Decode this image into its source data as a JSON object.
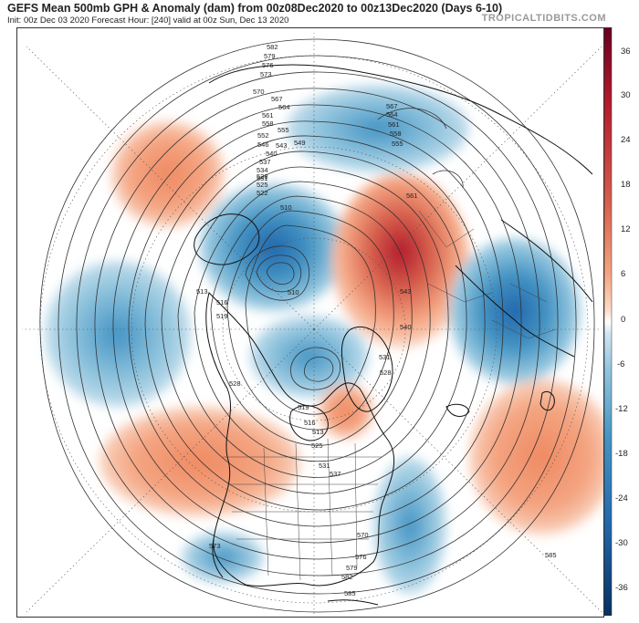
{
  "header": {
    "title": "GEFS Mean 500mb GPH & Anomaly (dam) from 00z08Dec2020 to 00z13Dec2020 (Days 6-10)",
    "subtitle": "Init: 00z Dec 03 2020   Forecast Hour: [240]   valid at 00z Sun, Dec 13 2020",
    "brand": "TROPICALTIDBITS.COM"
  },
  "colorbar": {
    "ticks": [
      "36",
      "30",
      "24",
      "18",
      "12",
      "6",
      "0",
      "-6",
      "-12",
      "-18",
      "-24",
      "-30",
      "-36"
    ],
    "colors": {
      "top": "#a50f15",
      "mid_pos": "#f4a582",
      "zero": "#ffffff",
      "mid_neg": "#92c5de",
      "bottom": "#08306b"
    }
  },
  "contour_labels": [
    {
      "id": "c582a",
      "text": "582"
    },
    {
      "id": "c579",
      "text": "579"
    },
    {
      "id": "c576",
      "text": "576"
    },
    {
      "id": "c573",
      "text": "573"
    },
    {
      "id": "c570",
      "text": "570"
    },
    {
      "id": "c567",
      "text": "567"
    },
    {
      "id": "c564",
      "text": "564"
    },
    {
      "id": "c561",
      "text": "561"
    },
    {
      "id": "c558",
      "text": "558"
    },
    {
      "id": "c555",
      "text": "555"
    },
    {
      "id": "c552",
      "text": "552"
    },
    {
      "id": "c549",
      "text": "549"
    },
    {
      "id": "c546",
      "text": "546"
    },
    {
      "id": "c543",
      "text": "543"
    },
    {
      "id": "c540",
      "text": "540"
    },
    {
      "id": "c537",
      "text": "537"
    },
    {
      "id": "c534",
      "text": "534"
    },
    {
      "id": "c531",
      "text": "531"
    },
    {
      "id": "c528",
      "text": "528"
    },
    {
      "id": "c525",
      "text": "525"
    },
    {
      "id": "c522",
      "text": "522"
    },
    {
      "id": "c519",
      "text": "519"
    },
    {
      "id": "c516",
      "text": "516"
    },
    {
      "id": "c513",
      "text": "513"
    },
    {
      "id": "c510a",
      "text": "510"
    },
    {
      "id": "c510b",
      "text": "510"
    },
    {
      "id": "c567b",
      "text": "567"
    },
    {
      "id": "c564b",
      "text": "564"
    },
    {
      "id": "c561b",
      "text": "561"
    },
    {
      "id": "c558b",
      "text": "558"
    },
    {
      "id": "c555b",
      "text": "555"
    },
    {
      "id": "c561c",
      "text": "561"
    },
    {
      "id": "c543b",
      "text": "543"
    },
    {
      "id": "c540b",
      "text": "540"
    },
    {
      "id": "c531b",
      "text": "531"
    },
    {
      "id": "c528b",
      "text": "528"
    },
    {
      "id": "c519b",
      "text": "519"
    },
    {
      "id": "c516b",
      "text": "516"
    },
    {
      "id": "c513b",
      "text": "513"
    },
    {
      "id": "c525b",
      "text": "525"
    },
    {
      "id": "c528c",
      "text": "528"
    },
    {
      "id": "c531c",
      "text": "531"
    },
    {
      "id": "c537b",
      "text": "537"
    },
    {
      "id": "c570b",
      "text": "570"
    },
    {
      "id": "c576b",
      "text": "576"
    },
    {
      "id": "c579b",
      "text": "579"
    },
    {
      "id": "c582b",
      "text": "582"
    },
    {
      "id": "c585a",
      "text": "585"
    },
    {
      "id": "c585b",
      "text": "585"
    },
    {
      "id": "c573b",
      "text": "573"
    }
  ]
}
